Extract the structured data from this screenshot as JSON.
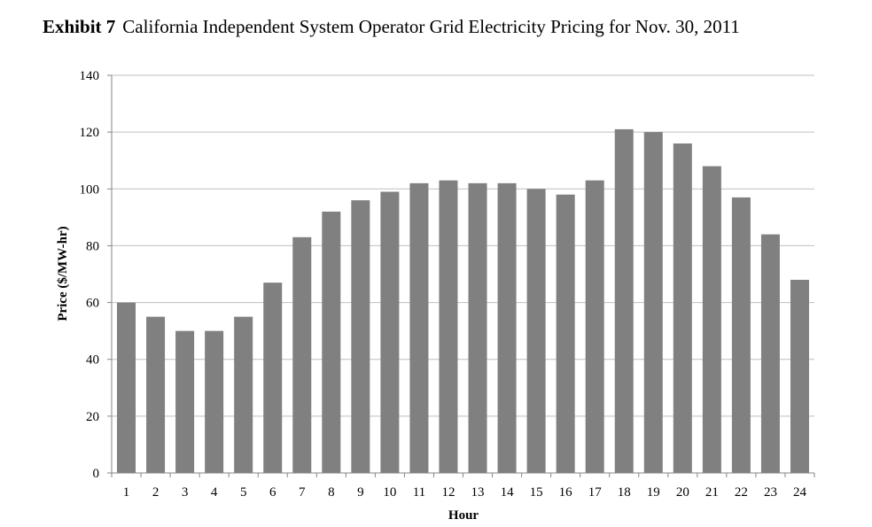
{
  "exhibit": {
    "label": "Exhibit 7",
    "title": "California Independent System Operator Grid Electricity Pricing for Nov. 30, 2011"
  },
  "chart_data": {
    "type": "bar",
    "title": "California Independent System Operator Grid Electricity Pricing for Nov. 30, 2011",
    "xlabel": "Hour",
    "ylabel": "Price ($/MW-hr)",
    "ylim": [
      0,
      140
    ],
    "yticks": [
      0,
      20,
      40,
      60,
      80,
      100,
      120,
      140
    ],
    "grid": true,
    "legend": "none",
    "categories": [
      "1",
      "2",
      "3",
      "4",
      "5",
      "6",
      "7",
      "8",
      "9",
      "10",
      "11",
      "12",
      "13",
      "14",
      "15",
      "16",
      "17",
      "18",
      "19",
      "20",
      "21",
      "22",
      "23",
      "24"
    ],
    "values": [
      60,
      55,
      50,
      50,
      55,
      67,
      83,
      92,
      96,
      99,
      102,
      103,
      102,
      102,
      100,
      98,
      103,
      121,
      120,
      116,
      108,
      97,
      84,
      68
    ],
    "bar_color": "#808080",
    "grid_color": "#bfbfbf",
    "axis_color": "#868686"
  }
}
